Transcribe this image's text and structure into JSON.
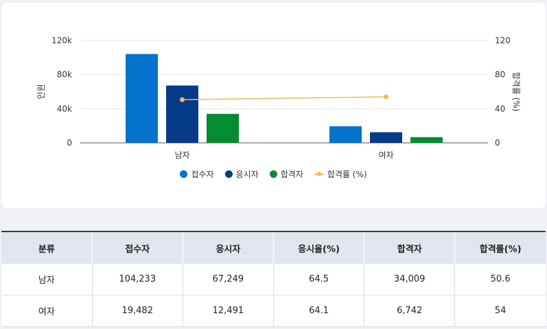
{
  "chart_data": {
    "type": "bar",
    "categories": [
      "남자",
      "여자"
    ],
    "series": [
      {
        "name": "접수자",
        "kind": "bar",
        "axis": "left",
        "color": "#0572ce",
        "values": [
          104233,
          19482
        ]
      },
      {
        "name": "응시자",
        "kind": "bar",
        "axis": "left",
        "color": "#063b8a",
        "values": [
          67249,
          12491
        ]
      },
      {
        "name": "합격자",
        "kind": "bar",
        "axis": "left",
        "color": "#068b35",
        "values": [
          34009,
          6742
        ]
      },
      {
        "name": "합격률 (%)",
        "kind": "line",
        "axis": "right",
        "color": "#f5b94b",
        "values": [
          50.6,
          54
        ]
      }
    ],
    "ylabel": "인원",
    "y2label": "합격률 (%)",
    "ylim": [
      0,
      120000
    ],
    "y2lim": [
      0,
      120
    ],
    "yticks": [
      "0",
      "40k",
      "80k",
      "120k"
    ],
    "y2ticks": [
      "0",
      "40",
      "80",
      "120"
    ],
    "grid": true,
    "legend_position": "bottom"
  },
  "table": {
    "headers": [
      "분류",
      "접수자",
      "응시자",
      "응시율(%)",
      "합격자",
      "합격률(%)"
    ],
    "rows": [
      [
        "남자",
        "104,233",
        "67,249",
        "64.5",
        "34,009",
        "50.6"
      ],
      [
        "여자",
        "19,482",
        "12,491",
        "64.1",
        "6,742",
        "54"
      ]
    ]
  }
}
